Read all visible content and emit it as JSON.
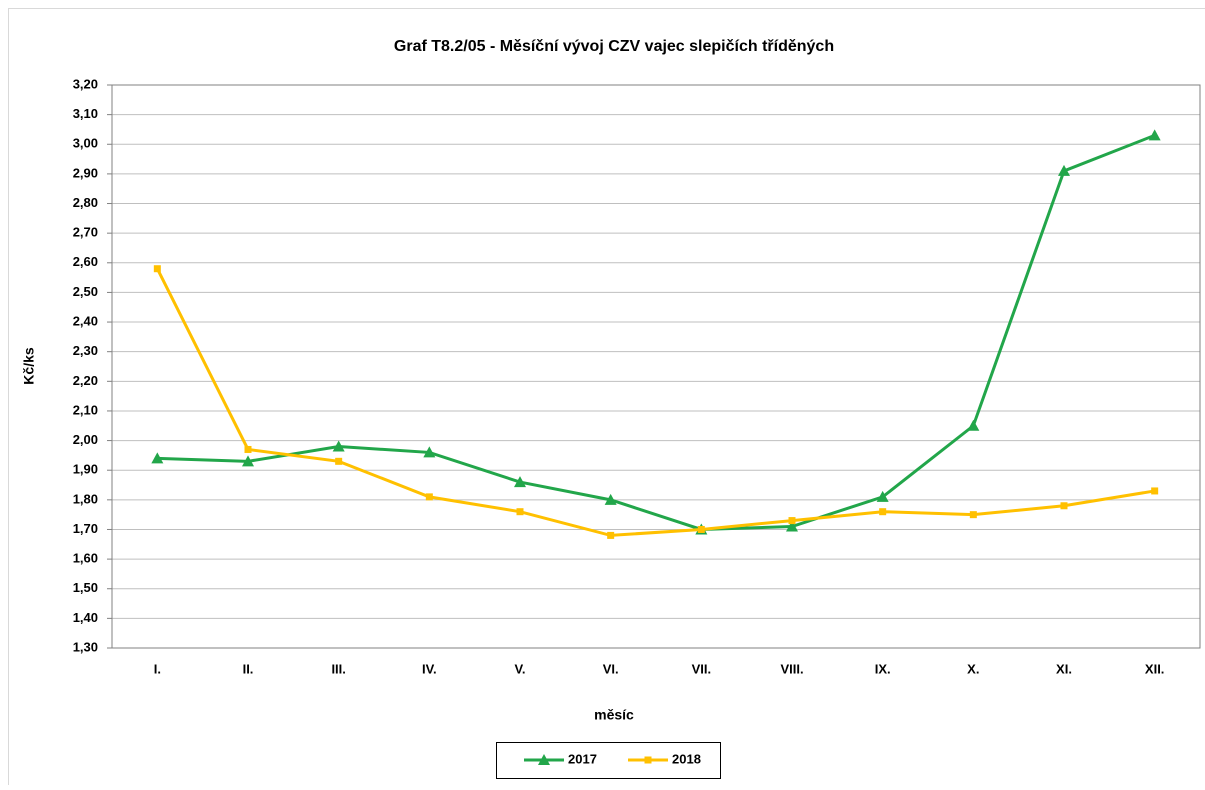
{
  "chart_data": {
    "type": "line",
    "title": "Graf T8.2/05 - Měsíční vývoj CZV vajec slepičích tříděných",
    "x_label": "měsíc",
    "y_label": "Kč/ks",
    "categories": [
      "I.",
      "II.",
      "III.",
      "IV.",
      "V.",
      "VI.",
      "VII.",
      "VIII.",
      "IX.",
      "X.",
      "XI.",
      "XII."
    ],
    "series": [
      {
        "name": "2017",
        "color": "#22a64a",
        "marker": "triangle",
        "values": [
          1.94,
          1.93,
          1.98,
          1.96,
          1.86,
          1.8,
          1.7,
          1.71,
          1.81,
          2.05,
          2.91,
          3.03
        ]
      },
      {
        "name": "2018",
        "color": "#ffc000",
        "marker": "square",
        "values": [
          2.58,
          1.97,
          1.93,
          1.81,
          1.76,
          1.68,
          1.7,
          1.73,
          1.76,
          1.75,
          1.78,
          1.83
        ]
      }
    ],
    "ylim": [
      1.3,
      3.2
    ],
    "yticks": [
      {
        "value": 1.3,
        "label": "1,30"
      },
      {
        "value": 1.4,
        "label": "1,40"
      },
      {
        "value": 1.5,
        "label": "1,50"
      },
      {
        "value": 1.6,
        "label": "1,60"
      },
      {
        "value": 1.7,
        "label": "1,70"
      },
      {
        "value": 1.8,
        "label": "1,80"
      },
      {
        "value": 1.9,
        "label": "1,90"
      },
      {
        "value": 2.0,
        "label": "2,00"
      },
      {
        "value": 2.1,
        "label": "2,10"
      },
      {
        "value": 2.2,
        "label": "2,20"
      },
      {
        "value": 2.3,
        "label": "2,30"
      },
      {
        "value": 2.4,
        "label": "2,40"
      },
      {
        "value": 2.5,
        "label": "2,50"
      },
      {
        "value": 2.6,
        "label": "2,60"
      },
      {
        "value": 2.7,
        "label": "2,70"
      },
      {
        "value": 2.8,
        "label": "2,80"
      },
      {
        "value": 2.9,
        "label": "2,90"
      },
      {
        "value": 3.0,
        "label": "3,00"
      },
      {
        "value": 3.1,
        "label": "3,10"
      },
      {
        "value": 3.2,
        "label": "3,20"
      }
    ],
    "grid": true,
    "legend": "bottom"
  }
}
